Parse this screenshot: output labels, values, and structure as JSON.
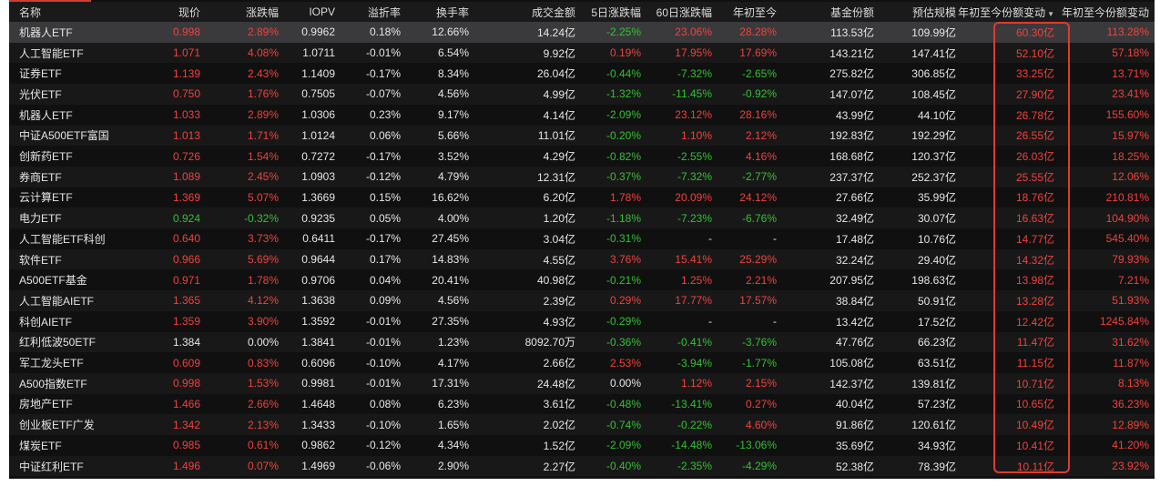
{
  "table": {
    "columns": [
      "名称",
      "现价",
      "涨跌幅",
      "IOPV",
      "溢折率",
      "换手率",
      "成交金额",
      "5日涨跌幅",
      "60日涨跌幅",
      "年初至今",
      "基金份额",
      "预估规模",
      "年初至今份额变动",
      "年初至今份额变动"
    ],
    "sorted_column_index": 12,
    "sort_direction": "desc",
    "sort_arrow_glyph": "▼",
    "selected_row": 0,
    "colors": {
      "up": "#f0423c",
      "down": "#32c232",
      "flat": "#e6e6e6",
      "highlight_box": "#e03a2e"
    },
    "rows": [
      [
        "机器人ETF",
        "0.998",
        "2.89%",
        "0.9962",
        "0.18%",
        "12.66%",
        "14.24亿",
        "-2.25%",
        "23.06%",
        "28.28%",
        "113.53亿",
        "109.99亿",
        "60.30亿",
        "113.28%"
      ],
      [
        "人工智能ETF",
        "1.071",
        "4.08%",
        "1.0711",
        "-0.01%",
        "6.54%",
        "9.92亿",
        "0.19%",
        "17.95%",
        "17.69%",
        "143.21亿",
        "147.41亿",
        "52.10亿",
        "57.18%"
      ],
      [
        "证券ETF",
        "1.139",
        "2.43%",
        "1.1409",
        "-0.17%",
        "8.34%",
        "26.04亿",
        "-0.44%",
        "-7.32%",
        "-2.65%",
        "275.82亿",
        "306.85亿",
        "33.25亿",
        "13.71%"
      ],
      [
        "光伏ETF",
        "0.750",
        "1.76%",
        "0.7505",
        "-0.07%",
        "4.56%",
        "4.99亿",
        "-1.32%",
        "-11.45%",
        "-0.92%",
        "147.07亿",
        "108.45亿",
        "27.90亿",
        "23.41%"
      ],
      [
        "机器人ETF",
        "1.033",
        "2.89%",
        "1.0306",
        "0.23%",
        "9.17%",
        "4.14亿",
        "-2.09%",
        "23.12%",
        "28.16%",
        "43.99亿",
        "44.10亿",
        "26.78亿",
        "155.60%"
      ],
      [
        "中证A500ETF富国",
        "1.013",
        "1.71%",
        "1.0124",
        "0.06%",
        "5.66%",
        "11.01亿",
        "-0.20%",
        "1.10%",
        "2.12%",
        "192.83亿",
        "192.29亿",
        "26.55亿",
        "15.97%"
      ],
      [
        "创新药ETF",
        "0.726",
        "1.54%",
        "0.7272",
        "-0.17%",
        "3.52%",
        "4.29亿",
        "-0.82%",
        "-2.55%",
        "4.16%",
        "168.68亿",
        "120.37亿",
        "26.03亿",
        "18.25%"
      ],
      [
        "券商ETF",
        "1.089",
        "2.45%",
        "1.0903",
        "-0.12%",
        "4.79%",
        "12.31亿",
        "-0.37%",
        "-7.32%",
        "-2.77%",
        "237.37亿",
        "252.37亿",
        "25.55亿",
        "12.06%"
      ],
      [
        "云计算ETF",
        "1.369",
        "5.07%",
        "1.3669",
        "0.15%",
        "16.62%",
        "6.20亿",
        "1.78%",
        "20.09%",
        "24.12%",
        "27.66亿",
        "35.99亿",
        "18.76亿",
        "210.81%"
      ],
      [
        "电力ETF",
        "0.924",
        "-0.32%",
        "0.9235",
        "0.05%",
        "4.00%",
        "1.20亿",
        "-1.18%",
        "-7.23%",
        "-6.76%",
        "32.49亿",
        "30.07亿",
        "16.63亿",
        "104.90%"
      ],
      [
        "人工智能ETF科创",
        "0.640",
        "3.73%",
        "0.6411",
        "-0.17%",
        "27.45%",
        "3.04亿",
        "-0.31%",
        "-",
        "-",
        "17.48亿",
        "10.76亿",
        "14.77亿",
        "545.40%"
      ],
      [
        "软件ETF",
        "0.966",
        "5.69%",
        "0.9644",
        "0.17%",
        "14.83%",
        "4.55亿",
        "3.76%",
        "15.41%",
        "25.29%",
        "32.24亿",
        "29.40亿",
        "14.32亿",
        "79.93%"
      ],
      [
        "A500ETF基金",
        "0.971",
        "1.78%",
        "0.9706",
        "0.04%",
        "20.41%",
        "40.98亿",
        "-0.21%",
        "1.25%",
        "2.21%",
        "207.95亿",
        "198.63亿",
        "13.98亿",
        "7.21%"
      ],
      [
        "人工智能AIETF",
        "1.365",
        "4.12%",
        "1.3638",
        "0.09%",
        "4.56%",
        "2.39亿",
        "0.29%",
        "17.77%",
        "17.57%",
        "38.84亿",
        "50.91亿",
        "13.28亿",
        "51.93%"
      ],
      [
        "科创AIETF",
        "1.359",
        "3.90%",
        "1.3592",
        "-0.01%",
        "27.35%",
        "4.93亿",
        "-0.29%",
        "-",
        "-",
        "13.42亿",
        "17.52亿",
        "12.42亿",
        "1245.84%"
      ],
      [
        "红利低波50ETF",
        "1.384",
        "0.00%",
        "1.3841",
        "-0.01%",
        "1.23%",
        "8092.70万",
        "-0.36%",
        "-0.41%",
        "-3.76%",
        "47.76亿",
        "66.23亿",
        "11.47亿",
        "31.62%"
      ],
      [
        "军工龙头ETF",
        "0.609",
        "0.83%",
        "0.6096",
        "-0.10%",
        "4.17%",
        "2.66亿",
        "2.53%",
        "-3.94%",
        "-1.77%",
        "105.08亿",
        "63.51亿",
        "11.15亿",
        "11.87%"
      ],
      [
        "A500指数ETF",
        "0.998",
        "1.53%",
        "0.9981",
        "-0.01%",
        "17.31%",
        "24.48亿",
        "0.00%",
        "1.12%",
        "2.15%",
        "142.37亿",
        "139.81亿",
        "10.71亿",
        "8.13%"
      ],
      [
        "房地产ETF",
        "1.466",
        "2.66%",
        "1.4648",
        "0.08%",
        "6.23%",
        "3.61亿",
        "-0.48%",
        "-13.41%",
        "0.27%",
        "40.04亿",
        "57.23亿",
        "10.65亿",
        "36.23%"
      ],
      [
        "创业板ETF广发",
        "1.342",
        "2.13%",
        "1.3433",
        "-0.10%",
        "1.65%",
        "2.02亿",
        "-0.74%",
        "-0.22%",
        "4.60%",
        "91.86亿",
        "120.61亿",
        "10.49亿",
        "12.89%"
      ],
      [
        "煤炭ETF",
        "0.985",
        "0.61%",
        "0.9862",
        "-0.12%",
        "4.34%",
        "1.52亿",
        "-2.09%",
        "-14.48%",
        "-13.06%",
        "35.69亿",
        "34.93亿",
        "10.41亿",
        "41.20%"
      ],
      [
        "中证红利ETF",
        "1.496",
        "0.07%",
        "1.4969",
        "-0.06%",
        "2.90%",
        "2.27亿",
        "-0.40%",
        "-2.35%",
        "-4.29%",
        "52.38亿",
        "78.39亿",
        "10.11亿",
        "23.92%"
      ]
    ]
  }
}
